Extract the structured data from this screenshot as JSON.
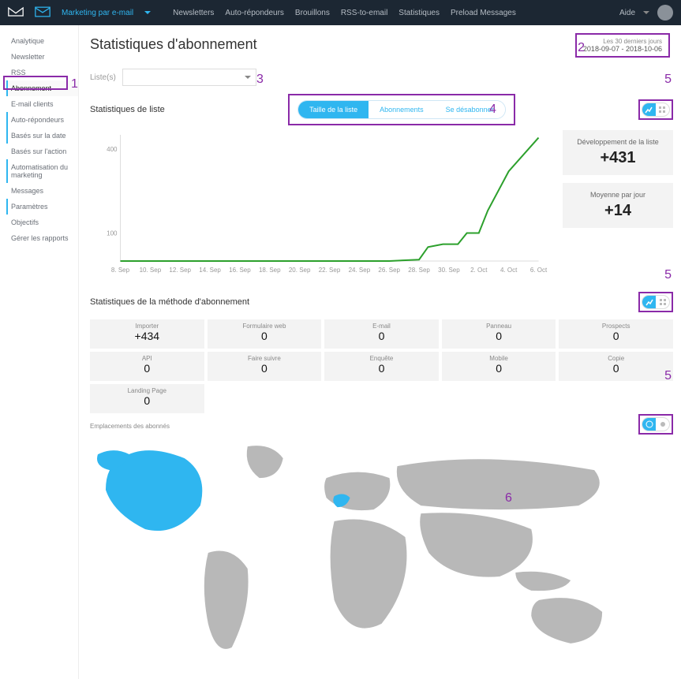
{
  "topbar": {
    "active_nav": "Marketing par e-mail",
    "items": [
      "Newsletters",
      "Auto-répondeurs",
      "Brouillons",
      "RSS-to-email",
      "Statistiques",
      "Preload Messages"
    ],
    "help": "Aide"
  },
  "sidebar": {
    "items": [
      {
        "label": "Analytique"
      },
      {
        "label": "Newsletter"
      },
      {
        "label": "RSS"
      },
      {
        "label": "Abonnement",
        "active": true
      },
      {
        "label": "E-mail clients"
      },
      {
        "label": "Auto-répondeurs",
        "bluebar": true
      },
      {
        "label": "Basés sur la date",
        "bluebar": true
      },
      {
        "label": "Basés sur l'action"
      },
      {
        "label": "Automatisation du marketing",
        "bluebar": true
      },
      {
        "label": "Messages"
      },
      {
        "label": "Paramètres",
        "bluebar": true
      },
      {
        "label": "Objectifs"
      },
      {
        "label": "Gérer les rapports"
      }
    ]
  },
  "page": {
    "title": "Statistiques d'abonnement"
  },
  "daterange": {
    "label": "Les 30 derniers jours",
    "range": "2018-09-07 - 2018-10-06"
  },
  "listes": {
    "label": "Liste(s)",
    "value": ""
  },
  "list_stats_title": "Statistiques de liste",
  "segmented": {
    "options": [
      "Taille de la liste",
      "Abonnements",
      "Se désabonner"
    ],
    "active": 0
  },
  "chart": {
    "type": "line",
    "x_labels": [
      "8. Sep",
      "10. Sep",
      "12. Sep",
      "14. Sep",
      "16. Sep",
      "18. Sep",
      "20. Sep",
      "22. Sep",
      "24. Sep",
      "26. Sep",
      "28. Sep",
      "30. Sep",
      "2. Oct",
      "4. Oct",
      "6. Oct"
    ],
    "y_ticks": [
      100,
      400
    ],
    "ylim": [
      0,
      450
    ],
    "series_color": "#2ca02c",
    "line_width": 2,
    "points": [
      {
        "x": 0,
        "y": 0
      },
      {
        "x": 1,
        "y": 0
      },
      {
        "x": 2,
        "y": 0
      },
      {
        "x": 3,
        "y": 0
      },
      {
        "x": 4,
        "y": 0
      },
      {
        "x": 5,
        "y": 0
      },
      {
        "x": 6,
        "y": 0
      },
      {
        "x": 7,
        "y": 0
      },
      {
        "x": 8,
        "y": 0
      },
      {
        "x": 9,
        "y": 0
      },
      {
        "x": 10,
        "y": 5
      },
      {
        "x": 10.3,
        "y": 50
      },
      {
        "x": 10.8,
        "y": 60
      },
      {
        "x": 11.3,
        "y": 60
      },
      {
        "x": 11.6,
        "y": 100
      },
      {
        "x": 12,
        "y": 100
      },
      {
        "x": 12.3,
        "y": 180
      },
      {
        "x": 13,
        "y": 320
      },
      {
        "x": 14,
        "y": 440
      }
    ],
    "axis_color": "#dddddd",
    "background": "#ffffff"
  },
  "cards": {
    "dev": {
      "label": "Développement de la liste",
      "value": "+431"
    },
    "avg": {
      "label": "Moyenne par jour",
      "value": "+14"
    }
  },
  "method_title": "Statistiques de la méthode d'abonnement",
  "method_stats": [
    {
      "label": "Importer",
      "value": "+434"
    },
    {
      "label": "Formulaire web",
      "value": "0"
    },
    {
      "label": "E-mail",
      "value": "0"
    },
    {
      "label": "Panneau",
      "value": "0"
    },
    {
      "label": "Prospects",
      "value": "0"
    },
    {
      "label": "API",
      "value": "0"
    },
    {
      "label": "Faire suivre",
      "value": "0"
    },
    {
      "label": "Enquête",
      "value": "0"
    },
    {
      "label": "Mobile",
      "value": "0"
    },
    {
      "label": "Copie",
      "value": "0"
    },
    {
      "label": "Landing Page",
      "value": "0"
    }
  ],
  "map": {
    "title": "Emplacements des abonnés",
    "highlight_color": "#2fb6f0",
    "base_color": "#b8b8b8"
  },
  "annotations": {
    "a1": "1",
    "a2": "2",
    "a3": "3",
    "a4": "4",
    "a5": "5",
    "a6": "6"
  },
  "colors": {
    "accent": "#2fb6f0",
    "annot": "#8a2aa8",
    "topbar": "#1c2733"
  }
}
